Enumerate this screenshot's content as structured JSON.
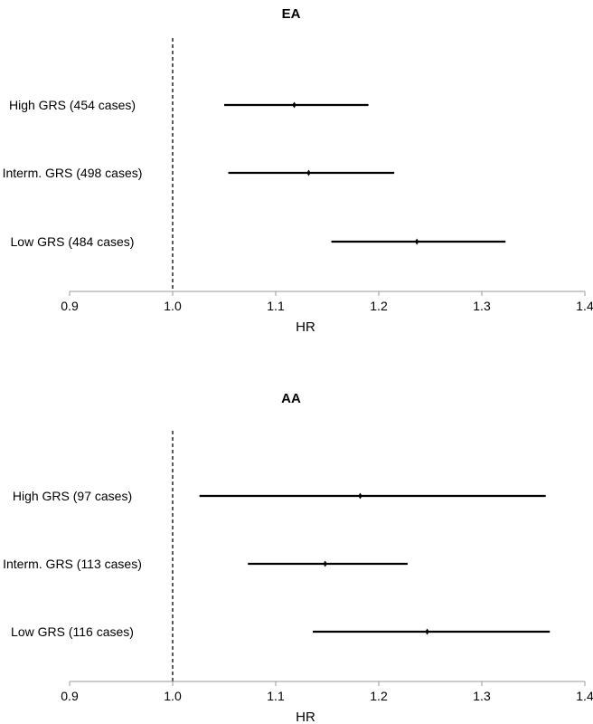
{
  "chart_data": [
    {
      "type": "forest",
      "title": "EA",
      "xlabel": "HR",
      "xlim": [
        0.9,
        1.4
      ],
      "xticks": [
        "0.9",
        "1.0",
        "1.1",
        "1.2",
        "1.3",
        "1.4"
      ],
      "reference_line": 1.0,
      "grid": false,
      "rows": [
        {
          "label": "High GRS (454 cases)",
          "estimate": 1.118,
          "lower": 1.05,
          "upper": 1.19
        },
        {
          "label": "Interm. GRS (498 cases)",
          "estimate": 1.132,
          "lower": 1.054,
          "upper": 1.215
        },
        {
          "label": "Low GRS (484 cases)",
          "estimate": 1.237,
          "lower": 1.154,
          "upper": 1.323
        }
      ]
    },
    {
      "type": "forest",
      "title": "AA",
      "xlabel": "HR",
      "xlim": [
        0.9,
        1.4
      ],
      "xticks": [
        "0.9",
        "1.0",
        "1.1",
        "1.2",
        "1.3",
        "1.4"
      ],
      "reference_line": 1.0,
      "grid": false,
      "rows": [
        {
          "label": "High GRS (97 cases)",
          "estimate": 1.182,
          "lower": 1.026,
          "upper": 1.362
        },
        {
          "label": "Interm. GRS (113 cases)",
          "estimate": 1.148,
          "lower": 1.073,
          "upper": 1.228
        },
        {
          "label": "Low GRS (116 cases)",
          "estimate": 1.247,
          "lower": 1.136,
          "upper": 1.366
        }
      ]
    }
  ]
}
